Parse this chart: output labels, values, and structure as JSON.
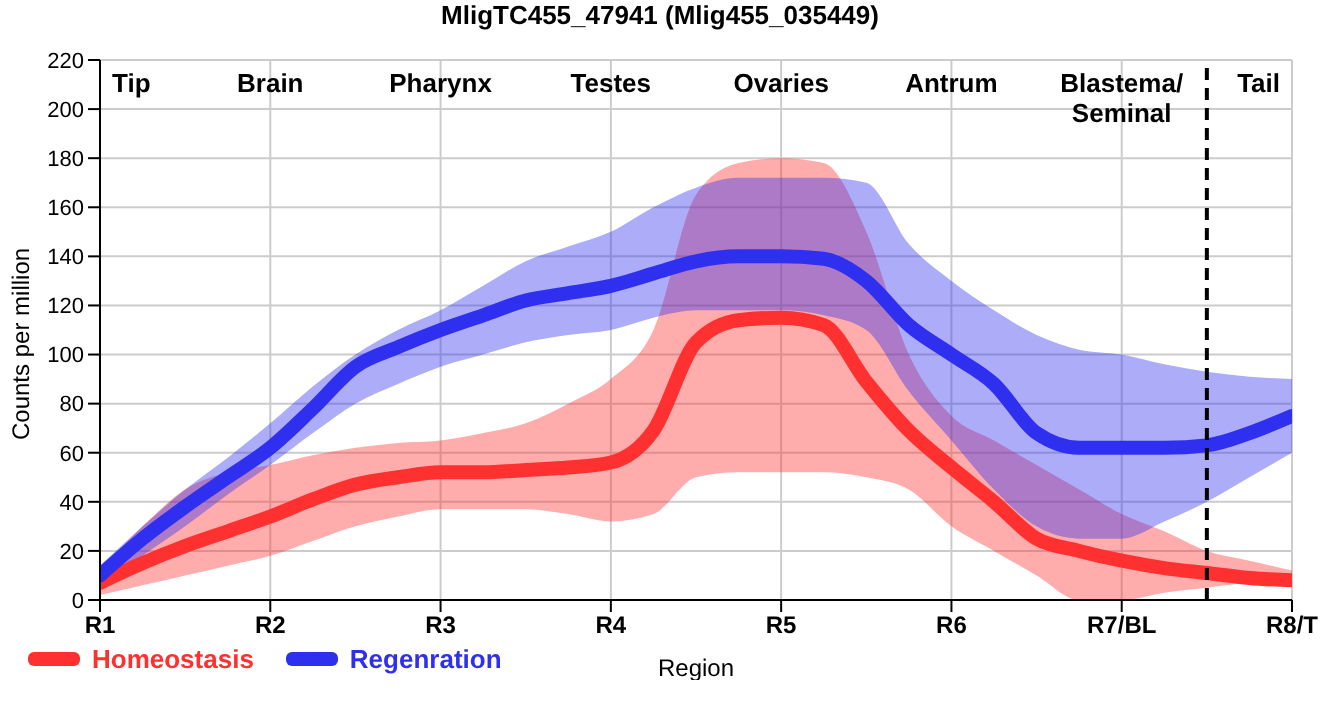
{
  "chart_data": {
    "type": "line",
    "title": "MligTC455_47941 (Mlig455_035449)",
    "xlabel": "Region",
    "ylabel": "Counts per million",
    "categories": [
      "R1",
      null,
      null,
      null,
      "R2",
      null,
      null,
      null,
      "R3",
      null,
      null,
      null,
      "R4",
      null,
      null,
      null,
      "R5",
      null,
      null,
      null,
      "R6",
      null,
      null,
      null,
      "R7/BL",
      null,
      null,
      null,
      "R8/T"
    ],
    "ylim": [
      0,
      220
    ],
    "yticks": [
      0,
      20,
      40,
      60,
      80,
      100,
      120,
      140,
      160,
      180,
      200,
      220
    ],
    "grid": true,
    "legend": "bottom",
    "line_style": "solid",
    "series": [
      {
        "name": "Homeostasis",
        "color": "#ff3030",
        "values": [
          7,
          15,
          22,
          28,
          34,
          41,
          47,
          50,
          52,
          52,
          53,
          54,
          56,
          69,
          105,
          114,
          115,
          112,
          89,
          69,
          54,
          40,
          25,
          20,
          16,
          13,
          11,
          9,
          8
        ],
        "lower": [
          2,
          6,
          10,
          14,
          18,
          24,
          30,
          34,
          37,
          37,
          37,
          35,
          32,
          35,
          50,
          52,
          52,
          52,
          50,
          45,
          30,
          20,
          10,
          0,
          0,
          3,
          5,
          7,
          8
        ],
        "upper": [
          12,
          30,
          45,
          52,
          55,
          59,
          62,
          64,
          65,
          68,
          72,
          80,
          90,
          110,
          165,
          178,
          180,
          178,
          150,
          100,
          75,
          65,
          55,
          45,
          35,
          28,
          20,
          16,
          12
        ]
      },
      {
        "name": "Regenration",
        "color": "#2f2ff0",
        "values": [
          10,
          25,
          38,
          50,
          62,
          78,
          95,
          103,
          110,
          116,
          122,
          125,
          128,
          133,
          138,
          140,
          140,
          139,
          130,
          112,
          100,
          88,
          68,
          62,
          62,
          62,
          63,
          68,
          75
        ],
        "lower": [
          5,
          18,
          30,
          43,
          55,
          68,
          80,
          88,
          95,
          100,
          105,
          108,
          110,
          115,
          118,
          118,
          118,
          116,
          110,
          85,
          65,
          45,
          30,
          25,
          25,
          32,
          40,
          50,
          60
        ],
        "upper": [
          14,
          30,
          45,
          58,
          72,
          87,
          100,
          110,
          118,
          128,
          138,
          144,
          150,
          160,
          168,
          172,
          172,
          172,
          170,
          145,
          130,
          118,
          108,
          102,
          100,
          96,
          93,
          91,
          90
        ]
      }
    ],
    "annotations": [
      "Tip",
      "Brain",
      "Pharynx",
      "Testes",
      "Ovaries",
      "Antrum",
      "Blastema/ Seminal",
      "Tail"
    ]
  }
}
